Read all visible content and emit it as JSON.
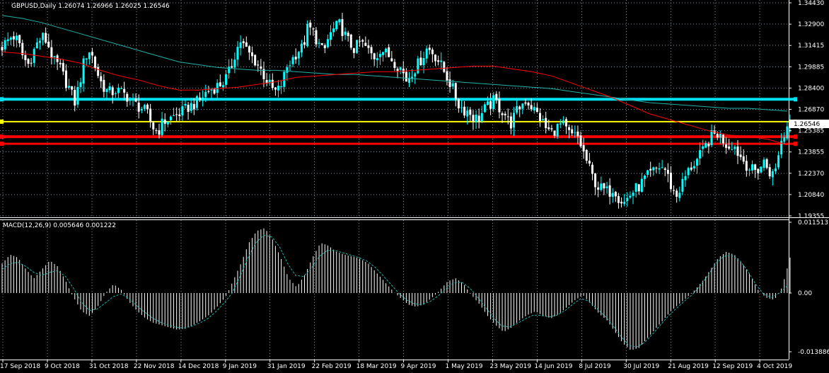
{
  "window": {
    "price_header": "GBPUSD,Daily  1.26074 1.26966 1.26025 1.26546",
    "macd_header": "MACD(12,26,9) 0.005646 0.001222"
  },
  "colors": {
    "background": "#000000",
    "grid": "#7f8c99",
    "bull_candle": "#00ffff",
    "bear_candle": "#ffffff",
    "ma_fast": "#ff0000",
    "ma_slow": "#20b2aa",
    "level_cyan": "#00e0f0",
    "level_yellow": "#ffff00",
    "level_red": "#ff0000",
    "macd_hist": "#ffffff",
    "macd_signal": "#20b2aa",
    "price_tag_bg": "#ffffff",
    "price_tag_text": "#000000"
  },
  "chart_data": [
    {
      "type": "candlestick",
      "symbol": "GBPUSD",
      "timeframe": "Daily",
      "last_price": "1.26546",
      "ylim": [
        1.1935,
        1.345
      ],
      "y_ticks": [
        "1.34430",
        "1.32900",
        "1.31415",
        "1.29885",
        "1.28400",
        "1.26870",
        "1.25385",
        "1.23855",
        "1.22370",
        "1.20840",
        "1.19355"
      ],
      "x_ticks": [
        "17 Sep 2018",
        "9 Oct 2018",
        "31 Oct 2018",
        "22 Nov 2018",
        "14 Dec 2018",
        "9 Jan 2019",
        "31 Jan 2019",
        "22 Feb 2019",
        "18 Mar 2019",
        "9 Apr 2019",
        "1 May 2019",
        "23 May 2019",
        "14 Jun 2019",
        "8 Jul 2019",
        "30 Jul 2019",
        "21 Aug 2019",
        "12 Sep 2019",
        "4 Oct 2019"
      ],
      "close_path": [
        1.314,
        1.318,
        1.322,
        1.318,
        1.307,
        1.301,
        1.31,
        1.318,
        1.321,
        1.314,
        1.303,
        1.3,
        1.291,
        1.284,
        1.274,
        1.289,
        1.307,
        1.312,
        1.299,
        1.289,
        1.283,
        1.281,
        1.283,
        1.281,
        1.279,
        1.275,
        1.272,
        1.27,
        1.266,
        1.257,
        1.253,
        1.26,
        1.262,
        1.264,
        1.266,
        1.268,
        1.271,
        1.273,
        1.275,
        1.28,
        1.283,
        1.285,
        1.287,
        1.29,
        1.297,
        1.31,
        1.318,
        1.312,
        1.307,
        1.303,
        1.297,
        1.29,
        1.284,
        1.281,
        1.288,
        1.3,
        1.305,
        1.311,
        1.313,
        1.328,
        1.324,
        1.316,
        1.309,
        1.321,
        1.326,
        1.33,
        1.323,
        1.316,
        1.312,
        1.317,
        1.314,
        1.309,
        1.306,
        1.313,
        1.309,
        1.306,
        1.302,
        1.298,
        1.29,
        1.296,
        1.3,
        1.306,
        1.313,
        1.31,
        1.305,
        1.298,
        1.291,
        1.283,
        1.273,
        1.269,
        1.268,
        1.263,
        1.263,
        1.269,
        1.272,
        1.276,
        1.27,
        1.266,
        1.258,
        1.266,
        1.272,
        1.276,
        1.272,
        1.267,
        1.262,
        1.255,
        1.253,
        1.256,
        1.259,
        1.253,
        1.25,
        1.25,
        1.24,
        1.23,
        1.22,
        1.214,
        1.212,
        1.21,
        1.214,
        1.206,
        1.203,
        1.208,
        1.212,
        1.215,
        1.22,
        1.223,
        1.226,
        1.229,
        1.226,
        1.215,
        1.207,
        1.215,
        1.223,
        1.229,
        1.233,
        1.238,
        1.245,
        1.251,
        1.252,
        1.248,
        1.243,
        1.245,
        1.238,
        1.233,
        1.228,
        1.225,
        1.227,
        1.232,
        1.225,
        1.222,
        1.244,
        1.252,
        1.265
      ],
      "ma_fast_path": [
        1.31,
        1.309,
        1.307,
        1.305,
        1.302,
        1.297,
        1.293,
        1.29,
        1.286,
        1.283,
        1.283,
        1.284,
        1.285,
        1.287,
        1.289,
        1.292,
        1.293,
        1.294,
        1.295,
        1.296,
        1.296,
        1.297,
        1.298,
        1.299,
        1.3,
        1.3,
        1.298,
        1.296,
        1.293,
        1.288,
        1.283,
        1.278,
        1.272,
        1.266,
        1.262,
        1.258,
        1.254,
        1.251,
        1.25,
        1.248,
        1.244
      ],
      "ma_slow_path": [
        1.336,
        1.334,
        1.331,
        1.327,
        1.323,
        1.319,
        1.315,
        1.311,
        1.307,
        1.303,
        1.301,
        1.299,
        1.298,
        1.297,
        1.297,
        1.296,
        1.295,
        1.294,
        1.294,
        1.293,
        1.292,
        1.291,
        1.29,
        1.289,
        1.288,
        1.287,
        1.286,
        1.285,
        1.284,
        1.282,
        1.28,
        1.278,
        1.276,
        1.274,
        1.273,
        1.272,
        1.271,
        1.27,
        1.27,
        1.269,
        1.268
      ],
      "levels": [
        1.2764,
        1.2605,
        1.2498,
        1.2448
      ]
    },
    {
      "type": "histogram",
      "indicator": "MACD(12,26,9)",
      "ylim": [
        -0.01388,
        0.011513
      ],
      "y_ticks": [
        "0.011513",
        "0.00",
        "-0.013886"
      ],
      "histogram_path": [
        0.005,
        0.0065,
        0.006,
        0.004,
        0.0025,
        0.004,
        0.0055,
        0.0045,
        0.002,
        -0.001,
        -0.004,
        -0.005,
        -0.003,
        0.0,
        0.0015,
        0.0005,
        -0.002,
        -0.004,
        -0.0055,
        -0.0065,
        -0.007,
        -0.0075,
        -0.008,
        -0.0078,
        -0.007,
        -0.006,
        -0.0048,
        -0.003,
        -0.001,
        0.002,
        0.005,
        0.0085,
        0.0105,
        0.011,
        0.009,
        0.006,
        0.0025,
        0.001,
        0.003,
        0.006,
        0.0085,
        0.008,
        0.007,
        0.0065,
        0.0062,
        0.0058,
        0.005,
        0.0035,
        0.002,
        0.0005,
        -0.001,
        -0.0025,
        -0.003,
        -0.0025,
        -0.001,
        0.0005,
        0.002,
        0.0025,
        0.0015,
        -0.0005,
        -0.0025,
        -0.005,
        -0.007,
        -0.0085,
        -0.0075,
        -0.006,
        -0.0048,
        -0.004,
        -0.005,
        -0.0055,
        -0.0045,
        -0.003,
        -0.0015,
        -0.0005,
        -0.0025,
        -0.0045,
        -0.006,
        -0.0085,
        -0.011,
        -0.0125,
        -0.012,
        -0.01,
        -0.008,
        -0.006,
        -0.004,
        -0.0025,
        -0.001,
        0.0005,
        0.002,
        0.004,
        0.006,
        0.007,
        0.0065,
        0.005,
        0.003,
        0.0005,
        -0.001,
        -0.0015,
        0.001,
        0.006
      ],
      "signal_path": [
        0.004,
        0.005,
        0.0052,
        0.0045,
        0.0035,
        0.003,
        0.0035,
        0.0038,
        0.0028,
        0.0008,
        -0.002,
        -0.0038,
        -0.0035,
        -0.0022,
        -0.0008,
        -0.0002,
        -0.0012,
        -0.0028,
        -0.0042,
        -0.0055,
        -0.0064,
        -0.007,
        -0.0075,
        -0.0076,
        -0.0072,
        -0.0065,
        -0.0055,
        -0.004,
        -0.0022,
        0.0,
        0.0028,
        0.006,
        0.0085,
        0.0098,
        0.0095,
        0.0078,
        0.005,
        0.003,
        0.0028,
        0.0042,
        0.0062,
        0.0072,
        0.0072,
        0.0068,
        0.0064,
        0.006,
        0.0054,
        0.0044,
        0.003,
        0.0015,
        0.0,
        -0.0015,
        -0.0024,
        -0.0025,
        -0.0018,
        -0.0006,
        0.0008,
        0.0018,
        0.0018,
        0.0008,
        -0.001,
        -0.0032,
        -0.0055,
        -0.0072,
        -0.0074,
        -0.0066,
        -0.0056,
        -0.0048,
        -0.0049,
        -0.0052,
        -0.0048,
        -0.0038,
        -0.0024,
        -0.0012,
        -0.0018,
        -0.0034,
        -0.005,
        -0.007,
        -0.0094,
        -0.0114,
        -0.0118,
        -0.0108,
        -0.009,
        -0.007,
        -0.005,
        -0.0034,
        -0.0018,
        -0.0004,
        0.0012,
        0.003,
        0.005,
        0.0062,
        0.0064,
        0.0055,
        0.0038,
        0.0015,
        -0.0002,
        -0.001,
        0.0,
        0.0012
      ]
    }
  ]
}
